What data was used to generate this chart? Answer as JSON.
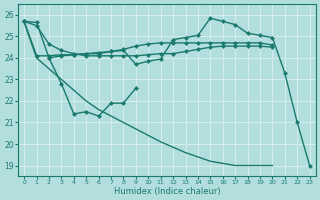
{
  "xlabel": "Humidex (Indice chaleur)",
  "xlim": [
    -0.5,
    23.5
  ],
  "ylim": [
    18.5,
    26.5
  ],
  "yticks": [
    19,
    20,
    21,
    22,
    23,
    24,
    25,
    26
  ],
  "xticks": [
    0,
    1,
    2,
    3,
    4,
    5,
    6,
    7,
    8,
    9,
    10,
    11,
    12,
    13,
    14,
    15,
    16,
    17,
    18,
    19,
    20,
    21,
    22,
    23
  ],
  "background_color": "#b2dede",
  "grid_color": "#c8e8e8",
  "line_color": "#1a7a6e",
  "line1_x": [
    0,
    1,
    2,
    3,
    4,
    5,
    6,
    7,
    8,
    9,
    10,
    11,
    12,
    13,
    14,
    15,
    16,
    17,
    18,
    19,
    20,
    21,
    22,
    23
  ],
  "line1_y": [
    25.7,
    25.65,
    24.0,
    24.1,
    24.15,
    24.2,
    24.25,
    24.3,
    24.35,
    23.7,
    23.85,
    23.95,
    24.85,
    24.95,
    25.05,
    25.85,
    25.7,
    25.55,
    25.15,
    25.05,
    24.95,
    23.3,
    21.0,
    19.0
  ],
  "line2_x": [
    0,
    1,
    2,
    3,
    4,
    5,
    6,
    7,
    8,
    9,
    10,
    11,
    12,
    13,
    14,
    15,
    16,
    17,
    18,
    19,
    20
  ],
  "line2_y": [
    25.7,
    25.5,
    24.65,
    24.35,
    24.2,
    24.1,
    24.1,
    24.1,
    24.1,
    24.1,
    24.15,
    24.2,
    24.2,
    24.3,
    24.4,
    24.5,
    24.55,
    24.55,
    24.55,
    24.55,
    24.5
  ],
  "line3_x": [
    0,
    1,
    2,
    3,
    4,
    5,
    6,
    7,
    8,
    9,
    10,
    11,
    12,
    13,
    14,
    15,
    16,
    17,
    18,
    19,
    20
  ],
  "line3_y": [
    25.7,
    24.1,
    24.1,
    24.15,
    24.15,
    24.2,
    24.2,
    24.3,
    24.4,
    24.55,
    24.65,
    24.7,
    24.7,
    24.7,
    24.7,
    24.7,
    24.7,
    24.7,
    24.7,
    24.7,
    24.6
  ],
  "line4_x": [
    2,
    3,
    4,
    5,
    6,
    7,
    8,
    9
  ],
  "line4_y": [
    24.0,
    22.8,
    21.4,
    21.5,
    21.3,
    21.9,
    21.9,
    22.6
  ],
  "line5_x": [
    0,
    1,
    2,
    3,
    4,
    5,
    6,
    7,
    8,
    9,
    10,
    11,
    12,
    13,
    14,
    15,
    16,
    17,
    18,
    19,
    20
  ],
  "line5_y": [
    25.65,
    24.0,
    23.5,
    23.0,
    22.5,
    22.0,
    21.6,
    21.3,
    21.0,
    20.7,
    20.4,
    20.1,
    19.85,
    19.6,
    19.4,
    19.2,
    19.1,
    19.0,
    19.0,
    19.0,
    19.0
  ],
  "markersize": 2.5,
  "linewidth": 1.0
}
